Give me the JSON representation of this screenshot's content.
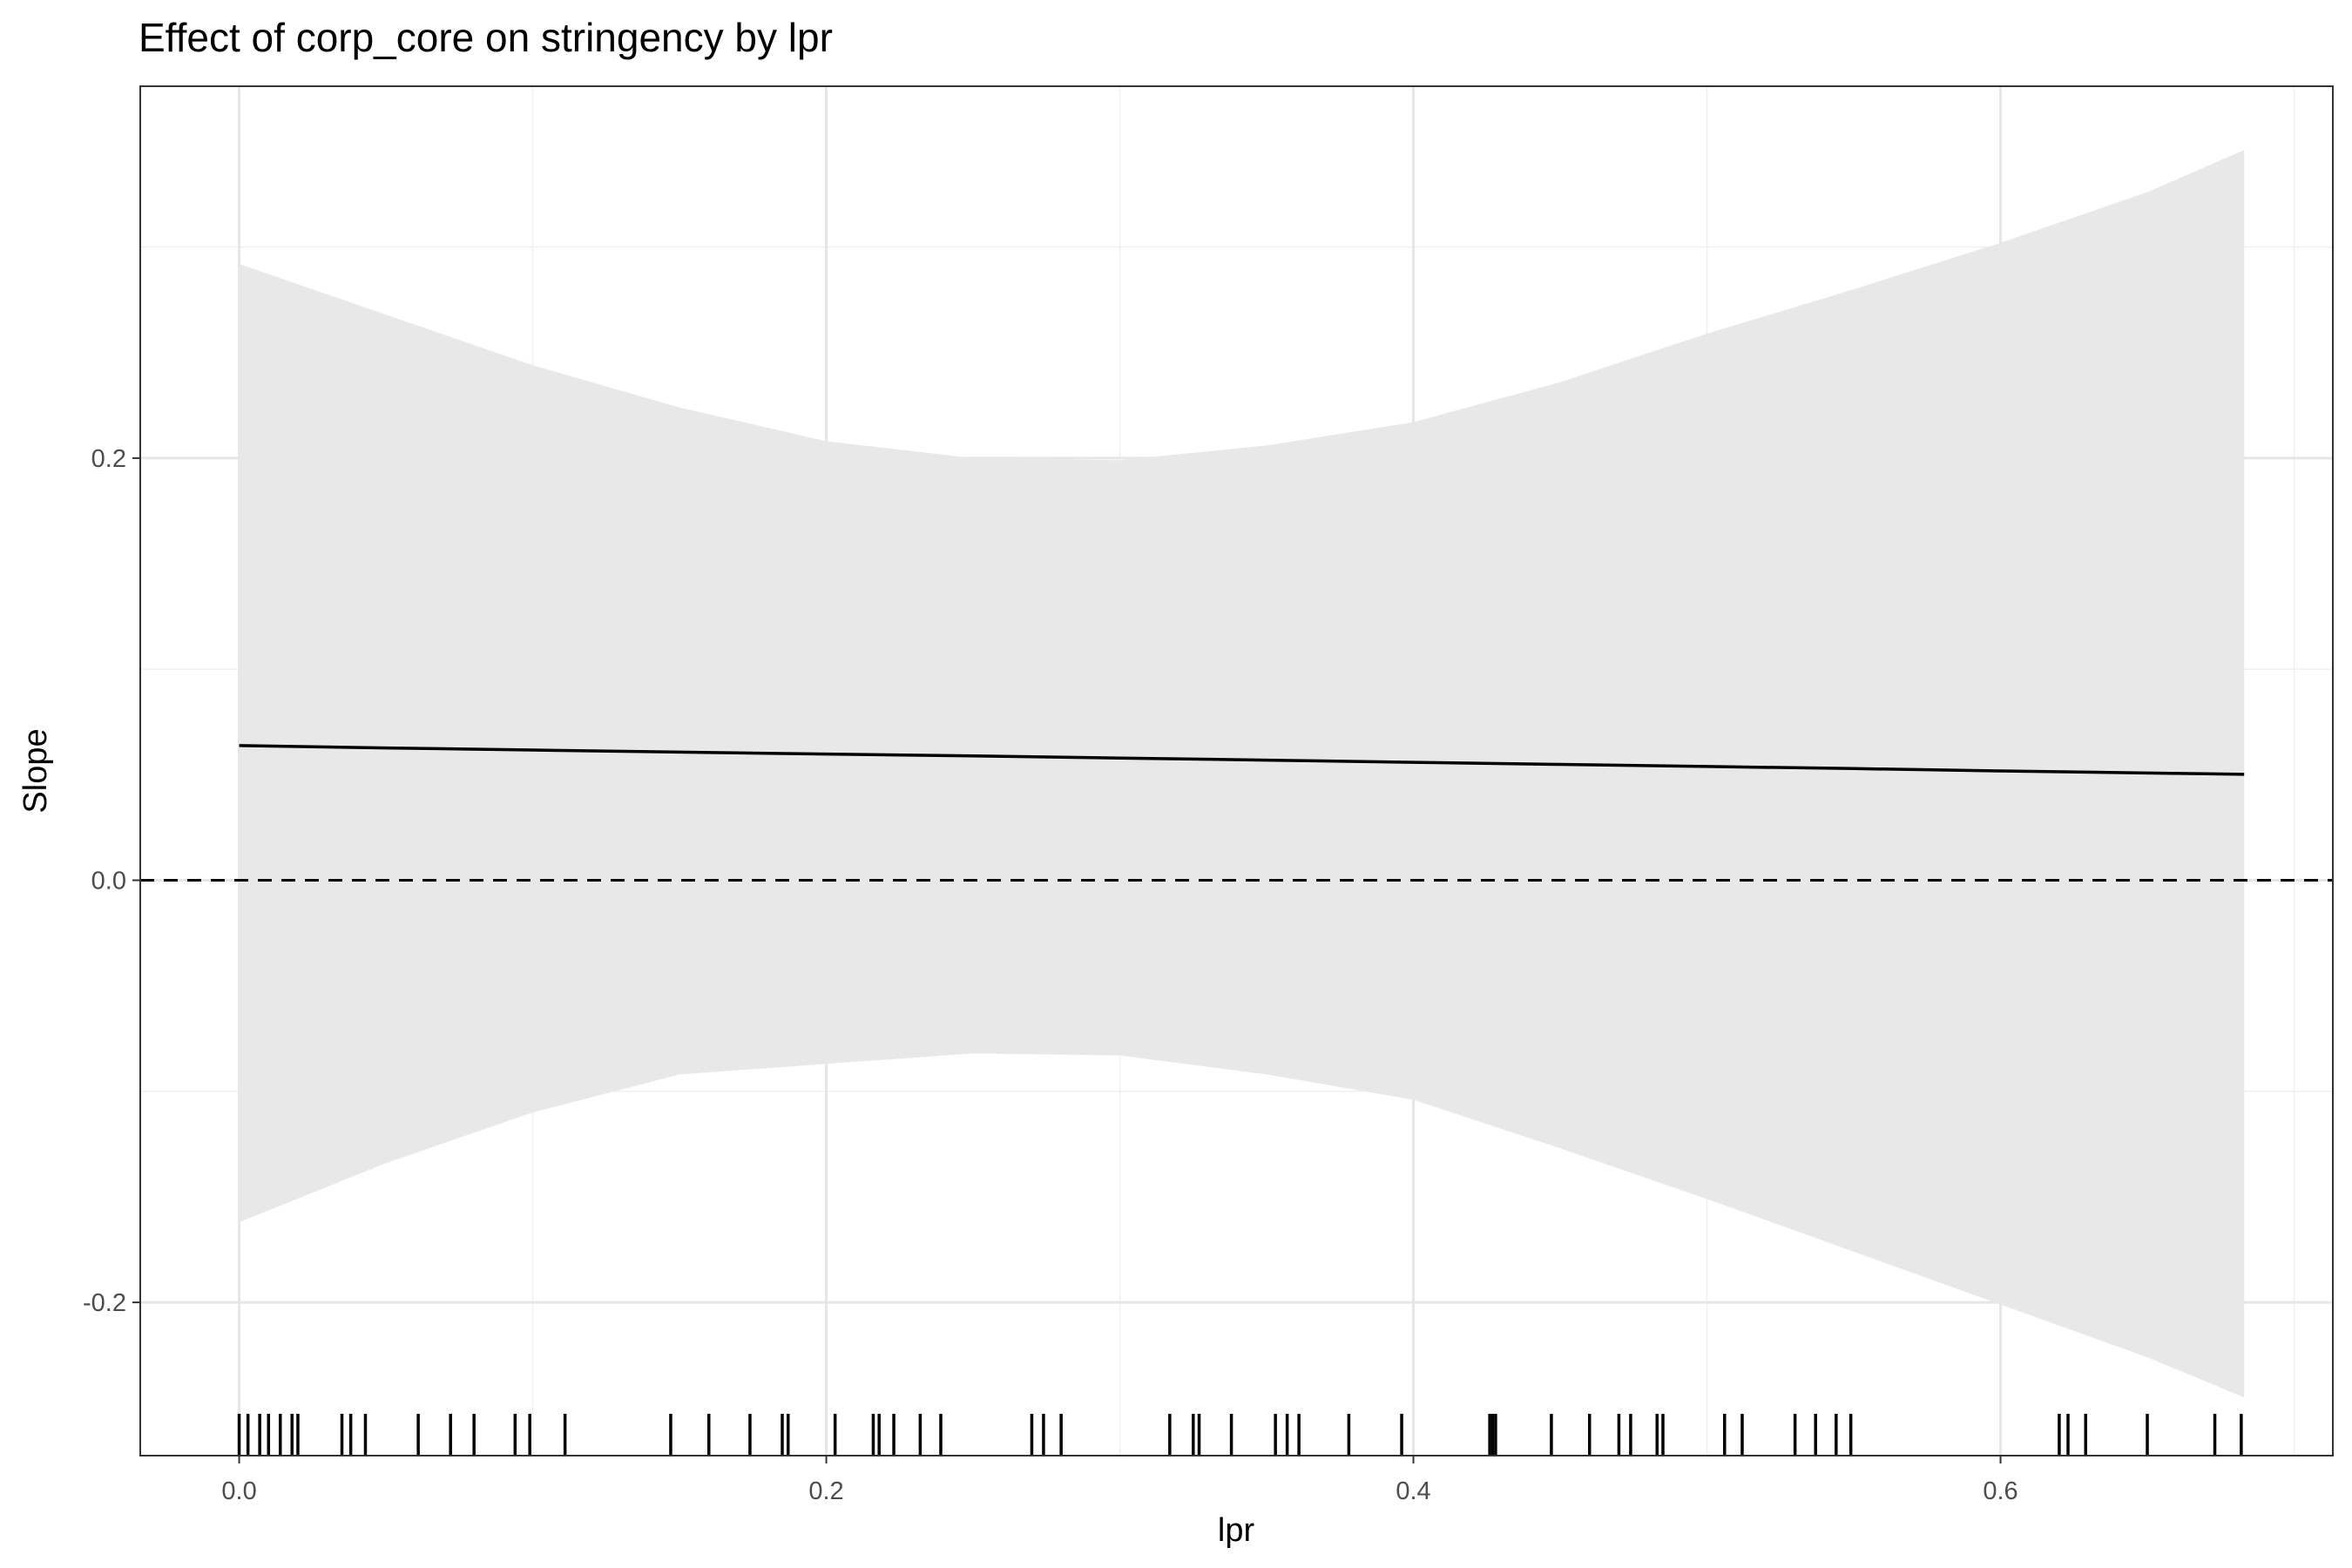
{
  "chart_data": {
    "type": "line",
    "title": "Effect of corp_core on stringency by lpr",
    "xlabel": "lpr",
    "ylabel": "Slope",
    "xlim": [
      -0.0337,
      0.7132
    ],
    "ylim": [
      -0.2726,
      0.3762
    ],
    "x_ticks": [
      0.0,
      0.2,
      0.4,
      0.6
    ],
    "x_tick_labels": [
      "0.0",
      "0.2",
      "0.4",
      "0.6"
    ],
    "y_ticks": [
      -0.2,
      0.0,
      0.2
    ],
    "y_tick_labels": [
      "-0.2",
      "0.0",
      "0.2"
    ],
    "grid": true,
    "reference_line": {
      "y": 0.0,
      "style": "dashed"
    },
    "series": [
      {
        "x": [
          0.0,
          0.05,
          0.1,
          0.15,
          0.2,
          0.25,
          0.3,
          0.35,
          0.4,
          0.45,
          0.5,
          0.55,
          0.6,
          0.65,
          0.683
        ],
        "values": [
          0.0638,
          0.0627,
          0.0617,
          0.0607,
          0.0598,
          0.0589,
          0.0579,
          0.0569,
          0.0559,
          0.0549,
          0.0539,
          0.0529,
          0.0518,
          0.0508,
          0.0502
        ]
      }
    ],
    "confidence_band": {
      "x": [
        0.0,
        0.05,
        0.1,
        0.15,
        0.2,
        0.25,
        0.3,
        0.35,
        0.4,
        0.45,
        0.5,
        0.55,
        0.6,
        0.65,
        0.683
      ],
      "upper": [
        0.292,
        0.268,
        0.244,
        0.224,
        0.208,
        0.2,
        0.199,
        0.206,
        0.217,
        0.236,
        0.259,
        0.28,
        0.302,
        0.326,
        0.346
      ],
      "lower": [
        -0.162,
        -0.134,
        -0.11,
        -0.092,
        -0.087,
        -0.082,
        -0.083,
        -0.092,
        -0.104,
        -0.127,
        -0.151,
        -0.176,
        -0.201,
        -0.226,
        -0.245
      ]
    },
    "rug_x": [
      0.0,
      0.003,
      0.007,
      0.01,
      0.014,
      0.018,
      0.02,
      0.035,
      0.038,
      0.043,
      0.061,
      0.072,
      0.08,
      0.094,
      0.099,
      0.111,
      0.147,
      0.16,
      0.174,
      0.185,
      0.187,
      0.203,
      0.216,
      0.218,
      0.223,
      0.232,
      0.239,
      0.27,
      0.274,
      0.28,
      0.317,
      0.325,
      0.327,
      0.338,
      0.353,
      0.357,
      0.361,
      0.378,
      0.396,
      0.426,
      0.427,
      0.428,
      0.447,
      0.46,
      0.47,
      0.474,
      0.483,
      0.485,
      0.506,
      0.512,
      0.53,
      0.537,
      0.544,
      0.549,
      0.62,
      0.623,
      0.629,
      0.65,
      0.673,
      0.682
    ]
  }
}
